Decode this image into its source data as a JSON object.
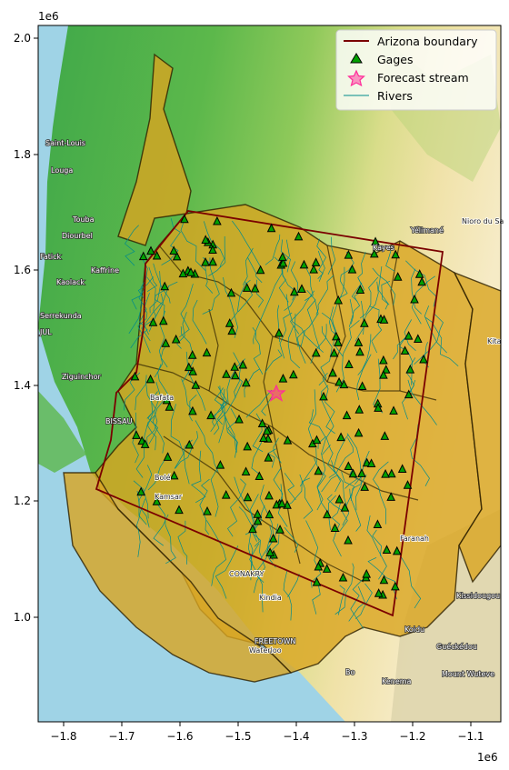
{
  "map": {
    "x_axis": {
      "offset_label": "1e6",
      "ticks": [
        "−1.8",
        "−1.7",
        "−1.6",
        "−1.5",
        "−1.4",
        "−1.3",
        "−1.2",
        "−1.1"
      ]
    },
    "y_axis": {
      "offset_label": "1e6",
      "ticks": [
        "2.0",
        "1.8",
        "1.6",
        "1.4",
        "1.2",
        "1.0"
      ]
    },
    "legend": {
      "position": "top-right",
      "items": [
        {
          "label": "Arizona boundary",
          "color": "#7a0000",
          "kind": "line"
        },
        {
          "label": "Gages",
          "color": "#00a000",
          "kind": "triangle"
        },
        {
          "label": "Forecast stream",
          "color": "#ff2d9a",
          "kind": "star"
        },
        {
          "label": "Rivers",
          "color": "#008b8b",
          "kind": "thin-line"
        }
      ]
    },
    "place_labels": [
      {
        "text": "Saint-Louis"
      },
      {
        "text": "Louga"
      },
      {
        "text": "Touba"
      },
      {
        "text": "Diourbel"
      },
      {
        "text": "Fatick"
      },
      {
        "text": "Kaffrine"
      },
      {
        "text": "Kaolack"
      },
      {
        "text": "Serrekunda"
      },
      {
        "text": "JUL"
      },
      {
        "text": "Ziguinchor"
      },
      {
        "text": "BISSAU"
      },
      {
        "text": "Bafata"
      },
      {
        "text": "Bolé"
      },
      {
        "text": "Kamsar"
      },
      {
        "text": "CONAKRY"
      },
      {
        "text": "Kindia"
      },
      {
        "text": "FREETOWN"
      },
      {
        "text": "Waterloo"
      },
      {
        "text": "Bo"
      },
      {
        "text": "Kenema"
      },
      {
        "text": "Koidu"
      },
      {
        "text": "Guéckédou"
      },
      {
        "text": "Kissidougou"
      },
      {
        "text": "Mount Wuteve"
      },
      {
        "text": "Kayes"
      },
      {
        "text": "Yélimané"
      },
      {
        "text": "Nioro du Sa"
      },
      {
        "text": "Kita"
      },
      {
        "text": "Faranah"
      }
    ],
    "colors": {
      "basin_fill": "#d9a520",
      "aoi": "#7a0000",
      "river": "#008b8b",
      "gage": "#00a000",
      "star": "#ff2d9a",
      "sea": "#9fd3e6"
    }
  }
}
